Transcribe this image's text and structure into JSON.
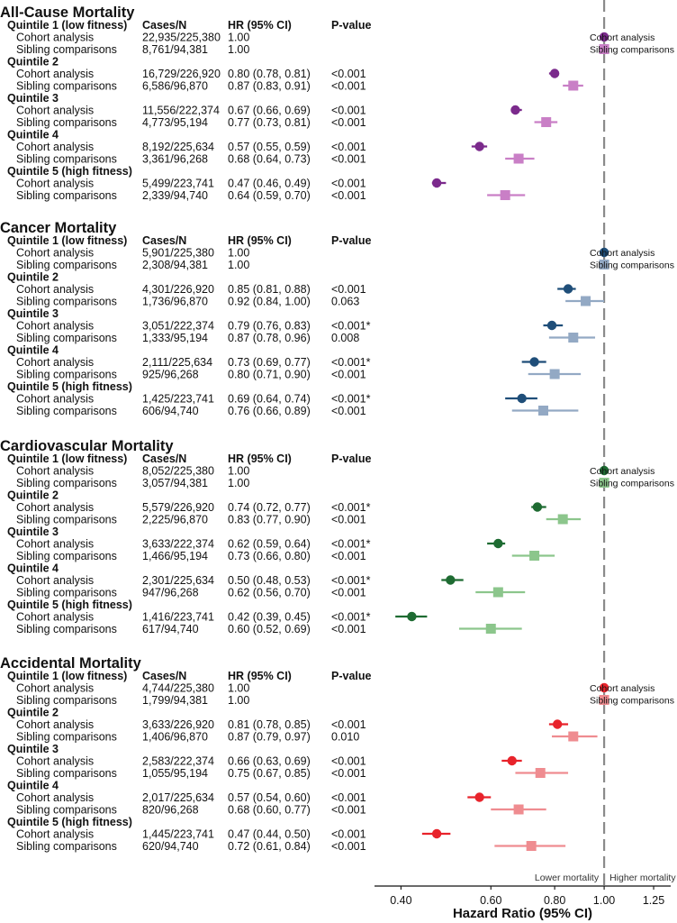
{
  "headers": {
    "cases": "Cases/N",
    "hr": "HR (95% CI)",
    "p": "P-value"
  },
  "legend": {
    "cohort": "Cohort analysis",
    "sibling": "Sibling comparisons"
  },
  "x_axis": {
    "label": "Hazard Ratio (95% CI)",
    "ticks": [
      "0.40",
      "0.60",
      "0.80",
      "1.00",
      "1.25"
    ],
    "tick_values": [
      0.4,
      0.6,
      0.8,
      1.0,
      1.25
    ],
    "scale": "log",
    "range": [
      0.355,
      1.35
    ],
    "reference_line": 1.0,
    "left_note": "Lower mortality",
    "right_note": "Higher mortality"
  },
  "chart_data": {
    "type": "forest",
    "xlabel": "Hazard Ratio (95% CI)",
    "xscale": "log",
    "panels": [
      {
        "title": "All-Cause Mortality",
        "colors": {
          "cohort": "#7b2a8c",
          "sibling": "#c97fc6"
        },
        "quintiles": [
          {
            "label": "Quintile 1 (low fitness)",
            "rows": [
              {
                "analysis": "Cohort analysis",
                "cases": "22,935/225,380",
                "hr_text": "1.00",
                "p": "",
                "hr": 1.0,
                "lo": 1.0,
                "hi": 1.0
              },
              {
                "analysis": "Sibling comparisons",
                "cases": "8,761/94,381",
                "hr_text": "1.00",
                "p": "",
                "hr": 1.0,
                "lo": 1.0,
                "hi": 1.0
              }
            ]
          },
          {
            "label": "Quintile 2",
            "rows": [
              {
                "analysis": "Cohort analysis",
                "cases": "16,729/226,920",
                "hr_text": "0.80 (0.78, 0.81)",
                "p": "<0.001",
                "hr": 0.8,
                "lo": 0.78,
                "hi": 0.81
              },
              {
                "analysis": "Sibling comparisons",
                "cases": "6,586/96,870",
                "hr_text": "0.87 (0.83, 0.91)",
                "p": "<0.001",
                "hr": 0.87,
                "lo": 0.83,
                "hi": 0.91
              }
            ]
          },
          {
            "label": "Quintile 3",
            "rows": [
              {
                "analysis": "Cohort analysis",
                "cases": "11,556/222,374",
                "hr_text": "0.67 (0.66, 0.69)",
                "p": "<0.001",
                "hr": 0.67,
                "lo": 0.66,
                "hi": 0.69
              },
              {
                "analysis": "Sibling comparisons",
                "cases": "4,773/95,194",
                "hr_text": "0.77 (0.73, 0.81)",
                "p": "<0.001",
                "hr": 0.77,
                "lo": 0.73,
                "hi": 0.81
              }
            ]
          },
          {
            "label": "Quintile 4",
            "rows": [
              {
                "analysis": "Cohort analysis",
                "cases": "8,192/225,634",
                "hr_text": "0.57 (0.55, 0.59)",
                "p": "<0.001",
                "hr": 0.57,
                "lo": 0.55,
                "hi": 0.59
              },
              {
                "analysis": "Sibling comparisons",
                "cases": "3,361/96,268",
                "hr_text": "0.68 (0.64, 0.73)",
                "p": "<0.001",
                "hr": 0.68,
                "lo": 0.64,
                "hi": 0.73
              }
            ]
          },
          {
            "label": "Quintile 5  (high fitness)",
            "rows": [
              {
                "analysis": "Cohort analysis",
                "cases": "5,499/223,741",
                "hr_text": "0.47 (0.46, 0.49)",
                "p": "<0.001",
                "hr": 0.47,
                "lo": 0.46,
                "hi": 0.49
              },
              {
                "analysis": "Sibling comparisons",
                "cases": "2,339/94,740",
                "hr_text": "0.64 (0.59, 0.70)",
                "p": "<0.001",
                "hr": 0.64,
                "lo": 0.59,
                "hi": 0.7
              }
            ]
          }
        ]
      },
      {
        "title": "Cancer Mortality",
        "colors": {
          "cohort": "#1f4e79",
          "sibling": "#93a9c4"
        },
        "quintiles": [
          {
            "label": "Quintile 1 (low fitness)",
            "rows": [
              {
                "analysis": "Cohort analysis",
                "cases": "5,901/225,380",
                "hr_text": "1.00",
                "p": "",
                "hr": 1.0,
                "lo": 1.0,
                "hi": 1.0
              },
              {
                "analysis": "Sibling comparisons",
                "cases": "2,308/94,381",
                "hr_text": "1.00",
                "p": "",
                "hr": 1.0,
                "lo": 1.0,
                "hi": 1.0
              }
            ]
          },
          {
            "label": "Quintile 2",
            "rows": [
              {
                "analysis": "Cohort analysis",
                "cases": "4,301/226,920",
                "hr_text": "0.85 (0.81, 0.88)",
                "p": "<0.001",
                "hr": 0.85,
                "lo": 0.81,
                "hi": 0.88
              },
              {
                "analysis": "Sibling comparisons",
                "cases": "1,736/96,870",
                "hr_text": "0.92 (0.84, 1.00)",
                "p": "0.063",
                "hr": 0.92,
                "lo": 0.84,
                "hi": 1.0
              }
            ]
          },
          {
            "label": "Quintile 3",
            "rows": [
              {
                "analysis": "Cohort analysis",
                "cases": "3,051/222,374",
                "hr_text": "0.79 (0.76, 0.83)",
                "p": "<0.001*",
                "hr": 0.79,
                "lo": 0.76,
                "hi": 0.83
              },
              {
                "analysis": "Sibling comparisons",
                "cases": "1,333/95,194",
                "hr_text": "0.87 (0.78, 0.96)",
                "p": "0.008",
                "hr": 0.87,
                "lo": 0.78,
                "hi": 0.96
              }
            ]
          },
          {
            "label": "Quintile 4",
            "rows": [
              {
                "analysis": "Cohort analysis",
                "cases": "2,111/225,634",
                "hr_text": "0.73 (0.69, 0.77)",
                "p": "<0.001*",
                "hr": 0.73,
                "lo": 0.69,
                "hi": 0.77
              },
              {
                "analysis": "Sibling comparisons",
                "cases": "925/96,268",
                "hr_text": "0.80 (0.71, 0.90)",
                "p": "<0.001",
                "hr": 0.8,
                "lo": 0.71,
                "hi": 0.9
              }
            ]
          },
          {
            "label": "Quintile 5  (high fitness)",
            "rows": [
              {
                "analysis": "Cohort analysis",
                "cases": "1,425/223,741",
                "hr_text": "0.69 (0.64, 0.74)",
                "p": "<0.001*",
                "hr": 0.69,
                "lo": 0.64,
                "hi": 0.74
              },
              {
                "analysis": "Sibling comparisons",
                "cases": "606/94,740",
                "hr_text": "0.76 (0.66, 0.89)",
                "p": "<0.001",
                "hr": 0.76,
                "lo": 0.66,
                "hi": 0.89
              }
            ]
          }
        ]
      },
      {
        "title": "Cardiovascular Mortality",
        "colors": {
          "cohort": "#1e6b32",
          "sibling": "#8cc68c"
        },
        "quintiles": [
          {
            "label": "Quintile 1 (low fitness)",
            "rows": [
              {
                "analysis": "Cohort analysis",
                "cases": "8,052/225,380",
                "hr_text": "1.00",
                "p": "",
                "hr": 1.0,
                "lo": 1.0,
                "hi": 1.0
              },
              {
                "analysis": "Sibling comparisons",
                "cases": "3,057/94,381",
                "hr_text": "1.00",
                "p": "",
                "hr": 1.0,
                "lo": 1.0,
                "hi": 1.0
              }
            ]
          },
          {
            "label": "Quintile 2",
            "rows": [
              {
                "analysis": "Cohort analysis",
                "cases": "5,579/226,920",
                "hr_text": "0.74 (0.72, 0.77)",
                "p": "<0.001*",
                "hr": 0.74,
                "lo": 0.72,
                "hi": 0.77
              },
              {
                "analysis": "Sibling comparisons",
                "cases": "2,225/96,870",
                "hr_text": "0.83 (0.77, 0.90)",
                "p": "<0.001",
                "hr": 0.83,
                "lo": 0.77,
                "hi": 0.9
              }
            ]
          },
          {
            "label": "Quintile 3",
            "rows": [
              {
                "analysis": "Cohort analysis",
                "cases": "3,633/222,374",
                "hr_text": "0.62 (0.59, 0.64)",
                "p": "<0.001*",
                "hr": 0.62,
                "lo": 0.59,
                "hi": 0.64
              },
              {
                "analysis": "Sibling comparisons",
                "cases": "1,466/95,194",
                "hr_text": "0.73 (0.66, 0.80)",
                "p": "<0.001",
                "hr": 0.73,
                "lo": 0.66,
                "hi": 0.8
              }
            ]
          },
          {
            "label": "Quintile 4",
            "rows": [
              {
                "analysis": "Cohort analysis",
                "cases": "2,301/225,634",
                "hr_text": "0.50 (0.48, 0.53)",
                "p": "<0.001*",
                "hr": 0.5,
                "lo": 0.48,
                "hi": 0.53
              },
              {
                "analysis": "Sibling comparisons",
                "cases": "947/96,268",
                "hr_text": "0.62 (0.56, 0.70)",
                "p": "<0.001",
                "hr": 0.62,
                "lo": 0.56,
                "hi": 0.7
              }
            ]
          },
          {
            "label": "Quintile 5  (high fitness)",
            "rows": [
              {
                "analysis": "Cohort analysis",
                "cases": "1,416/223,741",
                "hr_text": "0.42 (0.39, 0.45)",
                "p": "<0.001*",
                "hr": 0.42,
                "lo": 0.39,
                "hi": 0.45
              },
              {
                "analysis": "Sibling comparisons",
                "cases": "617/94,740",
                "hr_text": "0.60 (0.52, 0.69)",
                "p": "<0.001",
                "hr": 0.6,
                "lo": 0.52,
                "hi": 0.69
              }
            ]
          }
        ]
      },
      {
        "title": "Accidental Mortality",
        "colors": {
          "cohort": "#e8232b",
          "sibling": "#ef8c90"
        },
        "quintiles": [
          {
            "label": "Quintile 1 (low fitness)",
            "rows": [
              {
                "analysis": "Cohort analysis",
                "cases": "4,744/225,380",
                "hr_text": "1.00",
                "p": "",
                "hr": 1.0,
                "lo": 1.0,
                "hi": 1.0
              },
              {
                "analysis": "Sibling comparisons",
                "cases": "1,799/94,381",
                "hr_text": "1.00",
                "p": "",
                "hr": 1.0,
                "lo": 1.0,
                "hi": 1.0
              }
            ]
          },
          {
            "label": "Quintile 2",
            "rows": [
              {
                "analysis": "Cohort analysis",
                "cases": "3,633/226,920",
                "hr_text": "0.81 (0.78, 0.85)",
                "p": "<0.001",
                "hr": 0.81,
                "lo": 0.78,
                "hi": 0.85
              },
              {
                "analysis": "Sibling comparisons",
                "cases": "1,406/96,870",
                "hr_text": "0.87 (0.79, 0.97)",
                "p": "0.010",
                "hr": 0.87,
                "lo": 0.79,
                "hi": 0.97
              }
            ]
          },
          {
            "label": "Quintile 3",
            "rows": [
              {
                "analysis": "Cohort analysis",
                "cases": "2,583/222,374",
                "hr_text": "0.66 (0.63, 0.69)",
                "p": "<0.001",
                "hr": 0.66,
                "lo": 0.63,
                "hi": 0.69
              },
              {
                "analysis": "Sibling comparisons",
                "cases": "1,055/95,194",
                "hr_text": "0.75 (0.67, 0.85)",
                "p": "<0.001",
                "hr": 0.75,
                "lo": 0.67,
                "hi": 0.85
              }
            ]
          },
          {
            "label": "Quintile 4",
            "rows": [
              {
                "analysis": "Cohort analysis",
                "cases": "2,017/225,634",
                "hr_text": "0.57 (0.54, 0.60)",
                "p": "<0.001",
                "hr": 0.57,
                "lo": 0.54,
                "hi": 0.6
              },
              {
                "analysis": "Sibling comparisons",
                "cases": "820/96,268",
                "hr_text": "0.68 (0.60, 0.77)",
                "p": "<0.001",
                "hr": 0.68,
                "lo": 0.6,
                "hi": 0.77
              }
            ]
          },
          {
            "label": "Quintile 5 (high fitness)",
            "rows": [
              {
                "analysis": "Cohort analysis",
                "cases": "1,445/223,741",
                "hr_text": "0.47 (0.44, 0.50)",
                "p": "<0.001",
                "hr": 0.47,
                "lo": 0.44,
                "hi": 0.5
              },
              {
                "analysis": "Sibling comparisons",
                "cases": "620/94,740",
                "hr_text": "0.72 (0.61, 0.84)",
                "p": "<0.001",
                "hr": 0.72,
                "lo": 0.61,
                "hi": 0.84
              }
            ]
          }
        ]
      }
    ]
  }
}
